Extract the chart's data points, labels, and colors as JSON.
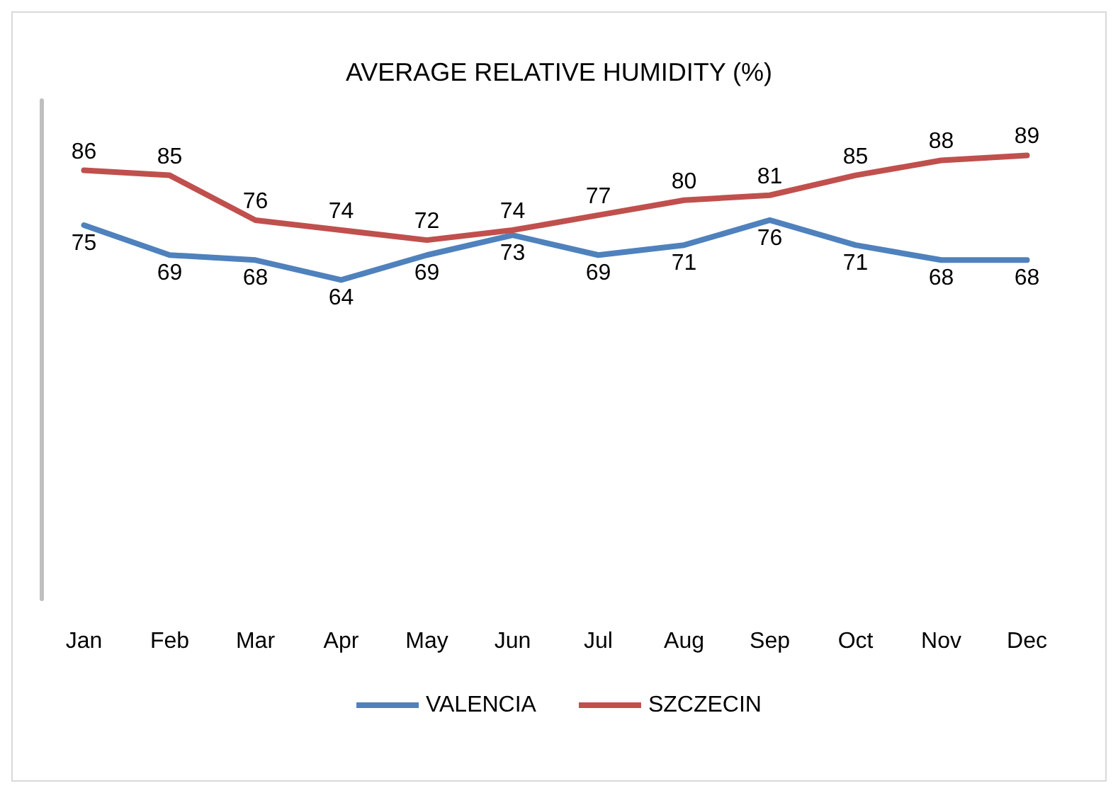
{
  "chart_data": {
    "type": "line",
    "title": "AVERAGE RELATIVE HUMIDITY (%)",
    "categories": [
      "Jan",
      "Feb",
      "Mar",
      "Apr",
      "May",
      "Jun",
      "Jul",
      "Aug",
      "Sep",
      "Oct",
      "Nov",
      "Dec"
    ],
    "series": [
      {
        "name": "VALENCIA",
        "color": "#4f81bd",
        "values": [
          75,
          69,
          68,
          64,
          69,
          73,
          69,
          71,
          76,
          71,
          68,
          68
        ]
      },
      {
        "name": "SZCZECIN",
        "color": "#c0504d",
        "values": [
          86,
          85,
          76,
          74,
          72,
          74,
          77,
          80,
          81,
          85,
          88,
          89
        ]
      }
    ],
    "ylim": [
      0,
      100
    ],
    "tick_labels": "x",
    "grid": false,
    "legend": "bottom",
    "data_labels": true,
    "marker": "none",
    "line_style": "solid"
  }
}
